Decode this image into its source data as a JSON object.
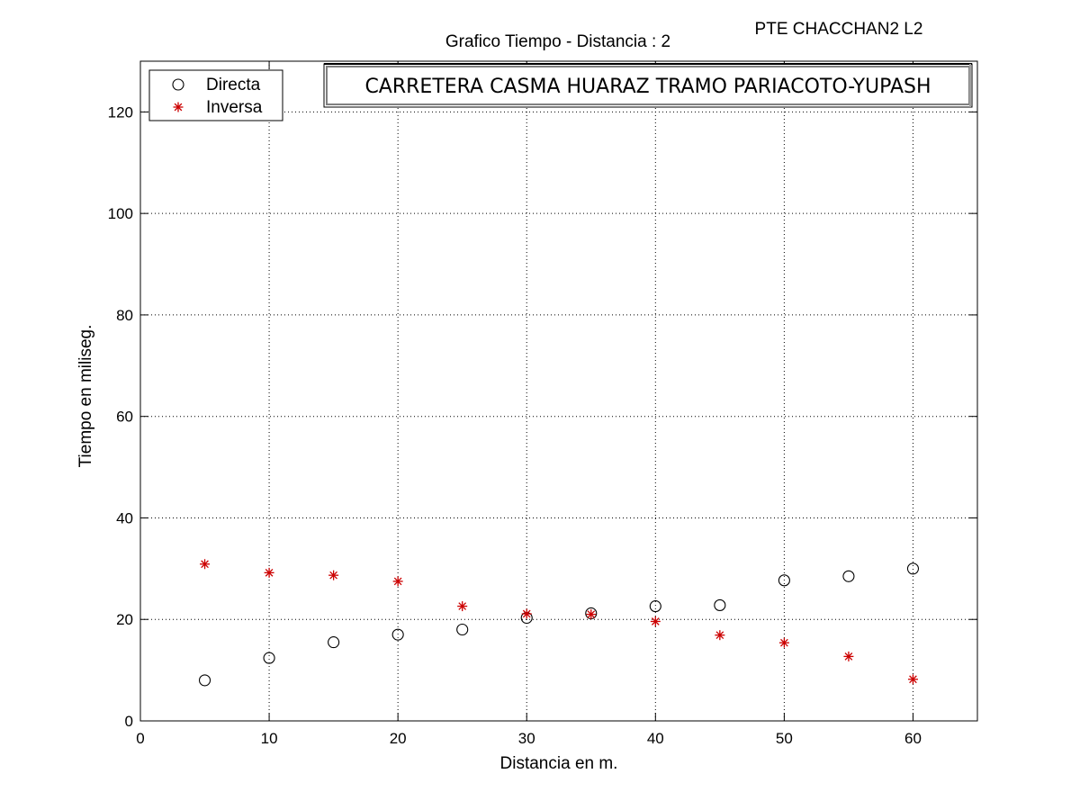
{
  "header": {
    "title": "Grafico Tiempo - Distancia :  2",
    "project_label": "PTE CHACCHAN2 L2",
    "banner": "CARRETERA CASMA HUARAZ TRAMO PARIACOTO-YUPASH"
  },
  "chart_data": {
    "type": "scatter",
    "xlabel": "Distancia en m.",
    "ylabel": "Tiempo en miliseg.",
    "xlim": [
      0,
      65
    ],
    "ylim": [
      0,
      130
    ],
    "xticks": [
      0,
      10,
      20,
      30,
      40,
      50,
      60
    ],
    "yticks": [
      0,
      20,
      40,
      60,
      80,
      100,
      120
    ],
    "grid": true,
    "legend_position": "top-left",
    "series": [
      {
        "name": "Directa",
        "marker": "circle",
        "color": "#000000",
        "x": [
          5,
          10,
          15,
          20,
          25,
          30,
          35,
          40,
          45,
          50,
          55,
          60
        ],
        "y": [
          8.0,
          12.4,
          15.5,
          17.0,
          18.0,
          20.3,
          21.2,
          22.6,
          22.8,
          27.7,
          28.5,
          30.0
        ]
      },
      {
        "name": "Inversa",
        "marker": "asterisk",
        "color": "#cc0000",
        "x": [
          5,
          10,
          15,
          20,
          25,
          30,
          35,
          40,
          45,
          50,
          55,
          60
        ],
        "y": [
          30.9,
          29.2,
          28.7,
          27.5,
          22.6,
          21.1,
          21.0,
          19.6,
          16.9,
          15.4,
          12.7,
          8.2
        ]
      }
    ]
  }
}
